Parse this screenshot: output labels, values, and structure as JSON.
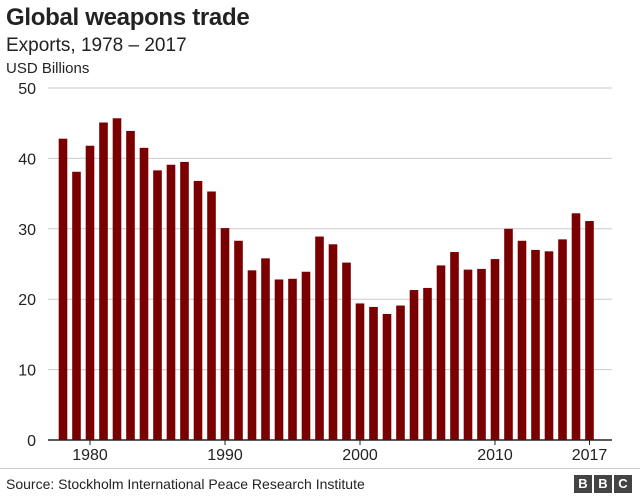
{
  "header": {
    "title": "Global weapons trade",
    "subtitle": "Exports, 1978 – 2017",
    "units": "USD Billions"
  },
  "footer": {
    "source": "Source: Stockholm International Peace Research Institute",
    "logo_letters": [
      "B",
      "B",
      "C"
    ]
  },
  "colors": {
    "bar": "#7a0000",
    "grid": "#cccccc",
    "axis": "#222222",
    "logo_bg": "#444444"
  },
  "chart_data": {
    "type": "bar",
    "title": "Global weapons trade",
    "subtitle": "Exports, 1978 – 2017",
    "ylabel": "USD Billions",
    "xlabel": "",
    "ylim": [
      0,
      50
    ],
    "yticks": [
      0,
      10,
      20,
      30,
      40,
      50
    ],
    "xtick_labels": [
      {
        "year": 1980,
        "label": "1980"
      },
      {
        "year": 1990,
        "label": "1990"
      },
      {
        "year": 2000,
        "label": "2000"
      },
      {
        "year": 2010,
        "label": "2010"
      },
      {
        "year": 2017,
        "label": "2017"
      }
    ],
    "grid": true,
    "categories": [
      1978,
      1979,
      1980,
      1981,
      1982,
      1983,
      1984,
      1985,
      1986,
      1987,
      1988,
      1989,
      1990,
      1991,
      1992,
      1993,
      1994,
      1995,
      1996,
      1997,
      1998,
      1999,
      2000,
      2001,
      2002,
      2003,
      2004,
      2005,
      2006,
      2007,
      2008,
      2009,
      2010,
      2011,
      2012,
      2013,
      2014,
      2015,
      2016,
      2017
    ],
    "values": [
      42.8,
      38.1,
      41.8,
      45.1,
      45.7,
      43.9,
      41.5,
      38.3,
      39.1,
      39.5,
      36.8,
      35.3,
      30.1,
      28.3,
      24.1,
      25.8,
      22.8,
      22.9,
      23.9,
      28.9,
      27.8,
      25.2,
      19.4,
      18.9,
      17.9,
      19.1,
      21.3,
      21.6,
      24.8,
      26.7,
      24.2,
      24.3,
      25.7,
      30.0,
      28.3,
      27.0,
      26.8,
      28.5,
      32.2,
      31.1
    ]
  }
}
